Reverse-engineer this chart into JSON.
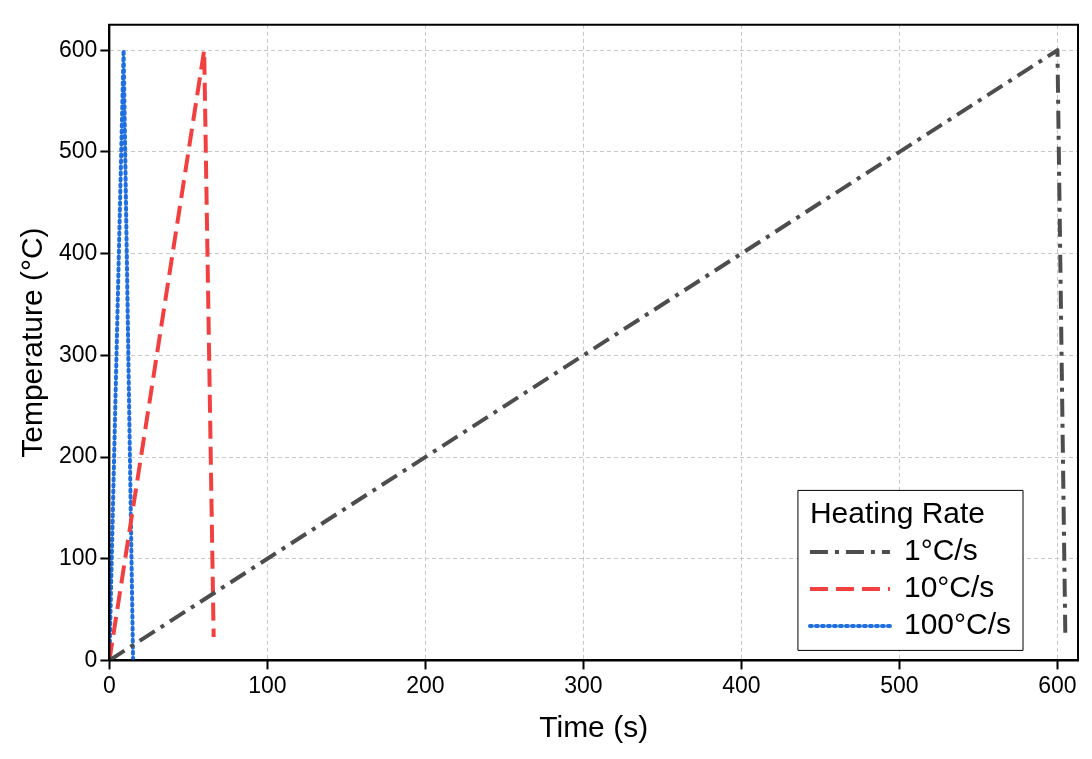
{
  "chart_data": {
    "type": "line",
    "xlabel": "Time (s)",
    "ylabel": "Temperature (°C)",
    "legend_title": "Heating Rate",
    "legend": "bottom right",
    "grid": true,
    "xlim": [
      0,
      613
    ],
    "xticks": [
      0,
      100,
      200,
      300,
      400,
      500,
      600
    ],
    "ylim": [
      0,
      625
    ],
    "yticks": [
      0,
      100,
      200,
      300,
      400,
      500,
      600
    ],
    "series": [
      {
        "name": "1°C/s",
        "color": "#4d4d4d",
        "line_style": "dashdot",
        "x": [
          0,
          600,
          605
        ],
        "values": [
          0,
          600,
          23
        ]
      },
      {
        "name": "10°C/s",
        "color": "#f24040",
        "line_style": "dashed",
        "x": [
          0,
          60,
          66
        ],
        "values": [
          0,
          600,
          23
        ]
      },
      {
        "name": "100°C/s",
        "color": "#1f6fe0",
        "line_style": "dotted",
        "x": [
          0,
          9,
          15
        ],
        "values": [
          0,
          600,
          0
        ]
      }
    ]
  }
}
